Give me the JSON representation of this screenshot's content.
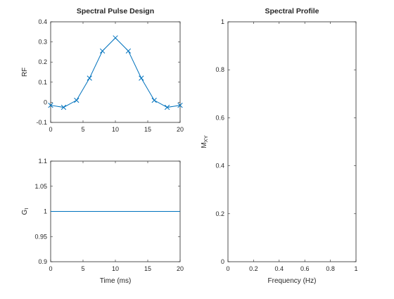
{
  "colors": {
    "series": "#0072bd",
    "axes": "#262626"
  },
  "chart_data": [
    {
      "type": "line",
      "title": "Spectral Pulse Design",
      "xlabel": "",
      "ylabel": "RF",
      "xlim": [
        0,
        20
      ],
      "ylim": [
        -0.1,
        0.4
      ],
      "xticks": [
        "0",
        "5",
        "10",
        "15",
        "20"
      ],
      "yticks": [
        "-0.1",
        "0",
        "0.1",
        "0.2",
        "0.3",
        "0.4"
      ],
      "grid": false,
      "marker": "x",
      "series": [
        {
          "x": [
            0,
            2,
            4,
            6,
            8,
            10,
            12,
            14,
            16,
            18,
            20
          ],
          "y": [
            -0.015,
            -0.025,
            0.01,
            0.12,
            0.255,
            0.32,
            0.255,
            0.12,
            0.01,
            -0.025,
            -0.015
          ]
        }
      ]
    },
    {
      "type": "line",
      "title": "",
      "xlabel": "Time (ms)",
      "ylabel_main": "G",
      "ylabel_sub": "I",
      "xlim": [
        0,
        20
      ],
      "ylim": [
        0.9,
        1.1
      ],
      "xticks": [
        "0",
        "5",
        "10",
        "15",
        "20"
      ],
      "yticks": [
        "0.9",
        "0.95",
        "1",
        "1.05",
        "1.1"
      ],
      "grid": false,
      "series": [
        {
          "x": [
            0,
            20
          ],
          "y": [
            1,
            1
          ]
        }
      ]
    },
    {
      "type": "line",
      "title": "Spectral Profile",
      "xlabel": "Frequency (Hz)",
      "ylabel_main": "M",
      "ylabel_sub": "XY",
      "xlim": [
        0,
        1
      ],
      "ylim": [
        0,
        1
      ],
      "xticks": [
        "0",
        "0.2",
        "0.4",
        "0.6",
        "0.8",
        "1"
      ],
      "yticks": [
        "0",
        "0.2",
        "0.4",
        "0.6",
        "0.8",
        "1"
      ],
      "grid": false,
      "series": []
    }
  ]
}
